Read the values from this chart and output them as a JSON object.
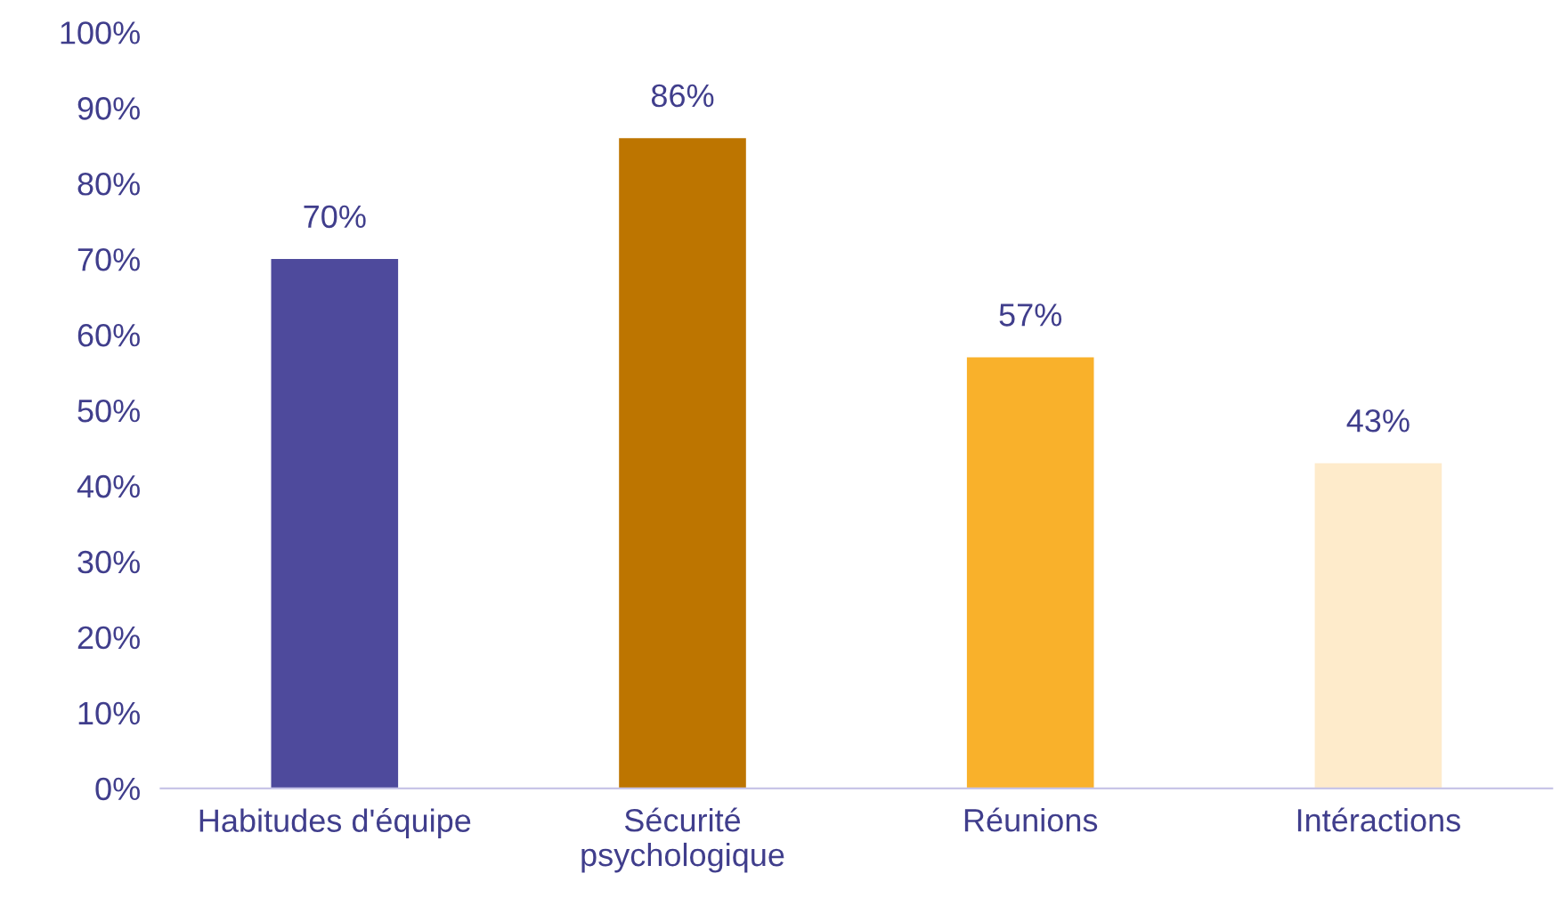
{
  "chart_data": {
    "type": "bar",
    "categories": [
      "Habitudes d'équipe",
      "Sécurité\npsychologique",
      "Réunions",
      "Intéractions"
    ],
    "values": [
      70,
      86,
      57,
      43
    ],
    "colors": [
      "#4e4a9c",
      "#bd7500",
      "#f9b12b",
      "#feebcb"
    ],
    "value_labels": [
      "70%",
      "86%",
      "57%",
      "43%"
    ],
    "ylim": [
      0,
      100
    ],
    "yticks": [
      {
        "value": 0,
        "label": "0%"
      },
      {
        "value": 10,
        "label": "10%"
      },
      {
        "value": 20,
        "label": "20%"
      },
      {
        "value": 30,
        "label": "30%"
      },
      {
        "value": 40,
        "label": "40%"
      },
      {
        "value": 50,
        "label": "50%"
      },
      {
        "value": 60,
        "label": "60%"
      },
      {
        "value": 70,
        "label": "70%"
      },
      {
        "value": 80,
        "label": "80%"
      },
      {
        "value": 90,
        "label": "90%"
      },
      {
        "value": 100,
        "label": "100%"
      }
    ],
    "grid": false,
    "legend": false
  }
}
